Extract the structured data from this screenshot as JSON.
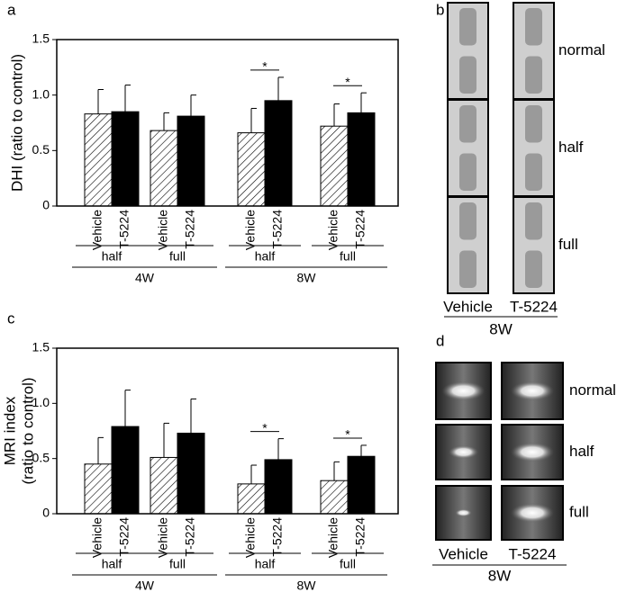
{
  "chart_data": [
    {
      "type": "bar",
      "panel": "a",
      "ylabel": [
        "DHI (ratio to control)"
      ],
      "categories": [
        "half",
        "full",
        "half",
        "full"
      ],
      "groups": [
        {
          "label": "4W",
          "size": 2
        },
        {
          "label": "8W",
          "size": 2
        }
      ],
      "markers": [
        null,
        null,
        "*",
        "*"
      ],
      "series": [
        {
          "name": "Vehicle",
          "color": "#ffffff",
          "hatch": true,
          "values": [
            0.83,
            0.68,
            0.66,
            0.72
          ],
          "errors": [
            0.22,
            0.16,
            0.22,
            0.2
          ]
        },
        {
          "name": "T-5224",
          "color": "#000000",
          "hatch": false,
          "values": [
            0.85,
            0.81,
            0.95,
            0.84
          ],
          "errors": [
            0.24,
            0.19,
            0.21,
            0.18
          ]
        }
      ],
      "ylim": [
        0,
        1.5
      ],
      "yticks": [
        0,
        0.5,
        {
          "value": 1,
          "label": "1.0"
        },
        1.5
      ]
    },
    {
      "type": "bar",
      "panel": "c",
      "ylabel": [
        "MRI index",
        "(ratio to control)"
      ],
      "categories": [
        "half",
        "full",
        "half",
        "full"
      ],
      "groups": [
        {
          "label": "4W",
          "size": 2
        },
        {
          "label": "8W",
          "size": 2
        }
      ],
      "markers": [
        null,
        null,
        "*",
        "*"
      ],
      "series": [
        {
          "name": "Vehicle",
          "color": "#ffffff",
          "hatch": true,
          "values": [
            0.45,
            0.51,
            0.27,
            0.3
          ],
          "errors": [
            0.24,
            0.31,
            0.17,
            0.17
          ]
        },
        {
          "name": "T-5224",
          "color": "#000000",
          "hatch": false,
          "values": [
            0.79,
            0.73,
            0.49,
            0.52
          ],
          "errors": [
            0.33,
            0.31,
            0.19,
            0.1
          ]
        }
      ],
      "ylim": [
        0,
        1.5
      ],
      "yticks": [
        0,
        0.5,
        {
          "value": 1,
          "label": "1.0"
        },
        1.5
      ]
    }
  ],
  "panels": [
    {
      "panel": "b",
      "rows": [
        "normal",
        "half",
        "full"
      ],
      "columns": [
        "Vehicle",
        "T-5224"
      ],
      "group": "8W"
    },
    {
      "panel": "d",
      "rows": [
        "normal",
        "half",
        "full"
      ],
      "columns": [
        "Vehicle",
        "T-5224"
      ],
      "group": "8W"
    }
  ]
}
